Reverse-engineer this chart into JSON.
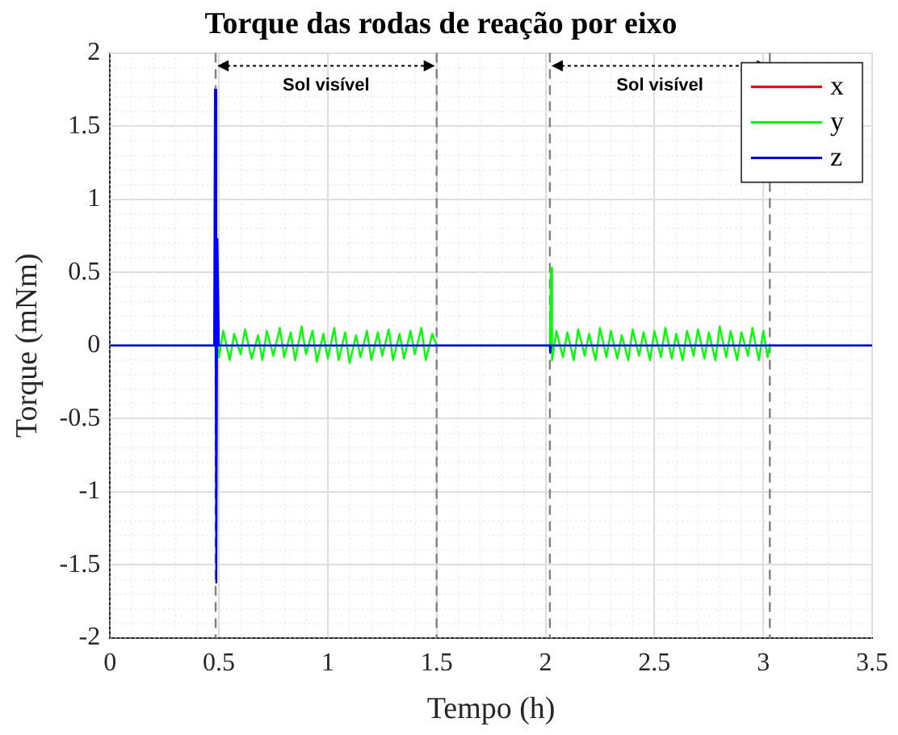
{
  "chart_data": {
    "type": "line",
    "title": "Torque das rodas de reação por eixo",
    "xlabel": "Tempo (h)",
    "ylabel": "Torque (mNm)",
    "xlim": [
      0,
      3.5
    ],
    "xticks": [
      0,
      0.5,
      1,
      1.5,
      2,
      2.5,
      3,
      3.5
    ],
    "ylim": [
      -2,
      2
    ],
    "yticks": [
      -2,
      -1.5,
      -1,
      -0.5,
      0,
      0.5,
      1,
      1.5,
      2
    ],
    "grid": true,
    "legend": "top right",
    "line_style": "solid",
    "marker": "none",
    "series": [
      {
        "name": "x",
        "color": "#ff0000"
      },
      {
        "name": "y",
        "color": "#00ff00",
        "x": [
          0,
          0.485,
          0.49,
          0.5,
          0.52,
          0.55,
          0.57,
          0.6,
          0.62,
          0.65,
          0.68,
          0.7,
          0.72,
          0.75,
          0.78,
          0.8,
          0.83,
          0.85,
          0.88,
          0.9,
          0.93,
          0.95,
          0.98,
          1.0,
          1.03,
          1.05,
          1.08,
          1.1,
          1.13,
          1.15,
          1.18,
          1.2,
          1.23,
          1.25,
          1.28,
          1.3,
          1.33,
          1.35,
          1.38,
          1.4,
          1.43,
          1.45,
          1.48,
          1.5,
          2.02,
          2.025,
          2.03,
          2.05,
          2.08,
          2.1,
          2.13,
          2.15,
          2.18,
          2.2,
          2.23,
          2.25,
          2.28,
          2.3,
          2.33,
          2.35,
          2.38,
          2.4,
          2.43,
          2.45,
          2.48,
          2.5,
          2.53,
          2.55,
          2.58,
          2.6,
          2.63,
          2.65,
          2.68,
          2.7,
          2.73,
          2.75,
          2.78,
          2.8,
          2.83,
          2.85,
          2.88,
          2.9,
          2.93,
          2.95,
          2.98,
          3.0,
          3.02,
          3.03,
          3.5
        ],
        "values": [
          0,
          0,
          0.12,
          -0.08,
          0.1,
          -0.1,
          0.08,
          -0.06,
          0.11,
          -0.09,
          0.07,
          -0.1,
          0.1,
          -0.07,
          0.12,
          -0.08,
          0.09,
          -0.1,
          0.13,
          -0.06,
          0.1,
          -0.11,
          0.08,
          -0.09,
          0.12,
          -0.1,
          0.09,
          -0.12,
          0.07,
          -0.08,
          0.1,
          -0.1,
          0.09,
          -0.07,
          0.11,
          -0.1,
          0.08,
          -0.09,
          0.1,
          -0.06,
          0.12,
          -0.1,
          0.08,
          0,
          0,
          0.53,
          -0.1,
          0.1,
          -0.08,
          0.09,
          -0.1,
          0.11,
          -0.07,
          0.08,
          -0.1,
          0.12,
          -0.08,
          0.1,
          -0.09,
          0.07,
          -0.1,
          0.11,
          -0.07,
          0.09,
          -0.1,
          0.1,
          -0.08,
          0.12,
          -0.09,
          0.08,
          -0.1,
          0.1,
          -0.07,
          0.11,
          -0.09,
          0.09,
          -0.1,
          0.13,
          -0.08,
          0.1,
          -0.1,
          0.09,
          -0.07,
          0.12,
          -0.1,
          0.1,
          -0.08,
          0,
          0
        ]
      },
      {
        "name": "z",
        "color": "#0000ff",
        "x": [
          0,
          0.478,
          0.482,
          0.488,
          0.493,
          0.5,
          2.02,
          2.022,
          2.025,
          3.5
        ],
        "values": [
          0,
          0,
          1.75,
          -1.62,
          0.73,
          0,
          0,
          -0.05,
          0,
          0
        ]
      }
    ],
    "ref_lines": [
      {
        "axis": "x",
        "value": 0.485,
        "color": "#808080",
        "line_style": "dashed"
      },
      {
        "axis": "x",
        "value": 1.5,
        "color": "#808080",
        "line_style": "dashed"
      },
      {
        "axis": "x",
        "value": 2.02,
        "color": "#808080",
        "line_style": "dashed"
      },
      {
        "axis": "x",
        "value": 3.03,
        "color": "#808080",
        "line_style": "dashed"
      }
    ],
    "annotations": [
      "Sol visível",
      "Sol visível"
    ]
  }
}
